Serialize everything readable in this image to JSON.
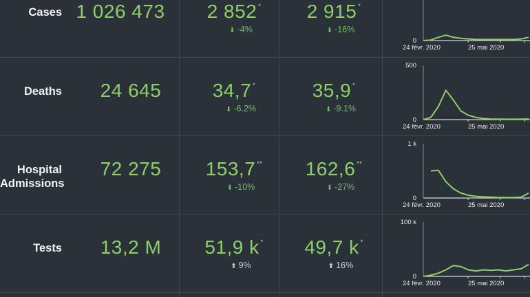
{
  "rows": [
    {
      "label": "Cases",
      "total": "1 026 473",
      "metric_a": "2 852",
      "metric_a_mark": "*",
      "metric_a_delta": "-4%",
      "metric_a_dir": "down",
      "metric_b": "2 915",
      "metric_b_mark": "*",
      "metric_b_delta": "-16%",
      "metric_b_dir": "down"
    },
    {
      "label": "Deaths",
      "total": "24 645",
      "metric_a": "34,7",
      "metric_a_mark": "*",
      "metric_a_delta": "-6.2%",
      "metric_a_dir": "down",
      "metric_b": "35,9",
      "metric_b_mark": "*",
      "metric_b_delta": "-9.1%",
      "metric_b_dir": "down"
    },
    {
      "label_line1": "Hospital",
      "label_line2": "Admissions",
      "total": "72 275",
      "metric_a": "153,7",
      "metric_a_mark": "**",
      "metric_a_delta": "-10%",
      "metric_a_dir": "down",
      "metric_b": "162,6",
      "metric_b_mark": "**",
      "metric_b_delta": "-27%",
      "metric_b_dir": "down"
    },
    {
      "label": "Tests",
      "total": "13,2 M",
      "metric_a": "51,9 k",
      "metric_a_mark": "*",
      "metric_a_delta": "9%",
      "metric_a_dir": "up",
      "metric_b": "49,7 k",
      "metric_b_mark": "*",
      "metric_b_delta": "16%",
      "metric_b_dir": "up"
    }
  ],
  "colors": {
    "accent": "#8fcf6a",
    "down": "#6fbf60",
    "background": "#2b3139",
    "grid": "#3e454e"
  },
  "chart_data": [
    {
      "type": "line",
      "x_tick_labels": [
        "24 févr. 2020",
        "25 mai 2020"
      ],
      "y_tick_labels": [
        "0"
      ],
      "ylim": [
        0,
        100
      ],
      "x": [
        0,
        1,
        2,
        3,
        4,
        5,
        6,
        7,
        8,
        9,
        10,
        11,
        12,
        13,
        14
      ],
      "series": [
        {
          "values": [
            0,
            1,
            6,
            10,
            6,
            4,
            3,
            2,
            2,
            2,
            2,
            2,
            2,
            3,
            6
          ]
        }
      ]
    },
    {
      "type": "line",
      "x_tick_labels": [
        "24 févr. 2020",
        "25 mai 2020"
      ],
      "y_tick_labels": [
        "0",
        "500"
      ],
      "ylim": [
        0,
        500
      ],
      "x": [
        0,
        1,
        2,
        3,
        4,
        5,
        6,
        7,
        8,
        9,
        10,
        11,
        12,
        13,
        14
      ],
      "series": [
        {
          "values": [
            0,
            20,
            120,
            270,
            180,
            80,
            40,
            20,
            10,
            6,
            5,
            4,
            4,
            5,
            6
          ]
        }
      ]
    },
    {
      "type": "line",
      "x_tick_labels": [
        "24 févr. 2020",
        "25 mai 2020"
      ],
      "y_tick_labels": [
        "0",
        "1 k"
      ],
      "ylim": [
        0,
        1000
      ],
      "x": [
        0,
        1,
        2,
        3,
        4,
        5,
        6,
        7,
        8,
        9,
        10,
        11,
        12,
        13,
        14
      ],
      "series": [
        {
          "values": [
            null,
            500,
            510,
            300,
            170,
            90,
            50,
            30,
            20,
            15,
            12,
            10,
            10,
            15,
            90
          ]
        }
      ]
    },
    {
      "type": "line",
      "x_tick_labels": [
        "24 févr. 2020",
        "25 mai 2020"
      ],
      "y_tick_labels": [
        "0",
        "100 k"
      ],
      "ylim": [
        0,
        100000
      ],
      "x": [
        0,
        1,
        2,
        3,
        4,
        5,
        6,
        7,
        8,
        9,
        10,
        11,
        12,
        13,
        14
      ],
      "series": [
        {
          "values": [
            0,
            2000,
            6000,
            12000,
            20000,
            18000,
            12000,
            10000,
            12000,
            11000,
            12000,
            10000,
            12000,
            14000,
            22000
          ]
        }
      ]
    }
  ]
}
